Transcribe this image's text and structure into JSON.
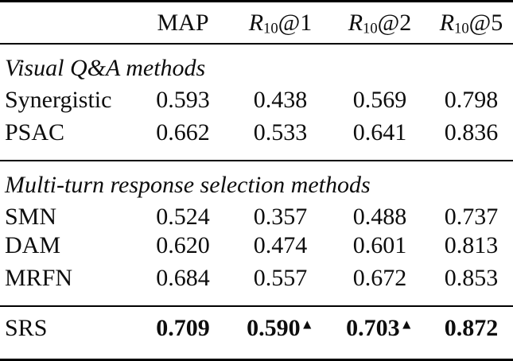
{
  "table": {
    "columns": [
      {
        "base": "",
        "sub": "",
        "suffix": "MAP"
      },
      {
        "base": "R",
        "sub": "10",
        "suffix": "@1"
      },
      {
        "base": "R",
        "sub": "10",
        "suffix": "@2"
      },
      {
        "base": "R",
        "sub": "10",
        "suffix": "@5"
      }
    ],
    "sections": [
      {
        "title": "Visual Q&A methods",
        "rows": [
          {
            "method": "Synergistic",
            "values": [
              "0.593",
              "0.438",
              "0.569",
              "0.798"
            ]
          },
          {
            "method": "PSAC",
            "values": [
              "0.662",
              "0.533",
              "0.641",
              "0.836"
            ]
          }
        ]
      },
      {
        "title": "Multi-turn response selection methods",
        "rows": [
          {
            "method": "SMN",
            "values": [
              "0.524",
              "0.357",
              "0.488",
              "0.737"
            ]
          },
          {
            "method": "DAM",
            "values": [
              "0.620",
              "0.474",
              "0.601",
              "0.813"
            ]
          },
          {
            "method": "MRFN",
            "values": [
              "0.684",
              "0.557",
              "0.672",
              "0.853"
            ]
          }
        ]
      }
    ],
    "result_row": {
      "method": "SRS",
      "values": [
        {
          "text": "0.709",
          "marker": ""
        },
        {
          "text": "0.590",
          "marker": "▲"
        },
        {
          "text": "0.703",
          "marker": "▲"
        },
        {
          "text": "0.872",
          "marker": ""
        }
      ]
    },
    "colors": {
      "text": "#0d0d0d",
      "rule": "#000000",
      "background": "#ffffff"
    }
  }
}
